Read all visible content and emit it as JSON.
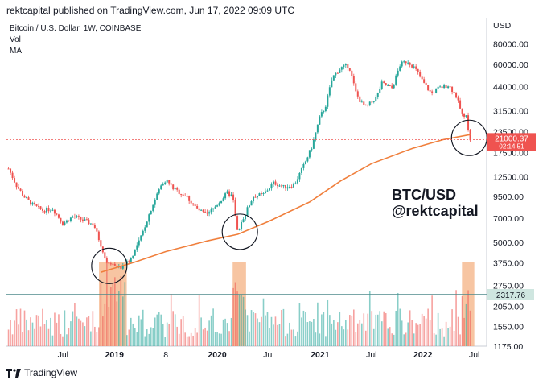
{
  "header": {
    "text": "rektcapital published on TradingView.com, Jun 17, 2022 09:09 UTC"
  },
  "legend": {
    "symbol": "Bitcoin / U.S. Dollar, 1W, COINBASE",
    "vol": "Vol",
    "ma": "MA"
  },
  "watermark": {
    "line1": "BTC/USD",
    "line2": "@rektcapital"
  },
  "footer": {
    "brand": "TradingView"
  },
  "colors": {
    "up": "#26a69a",
    "down": "#ef5350",
    "ma": "#f07f3c",
    "vol_zone": "#f4b183",
    "hline": "#4f8a8b",
    "price_badge": "#ef5350",
    "vol_badge": "#cfe6e0"
  },
  "chart_data": {
    "type": "line",
    "title": "Bitcoin / U.S. Dollar, 1W, COINBASE",
    "y_axis_unit": "USD",
    "y_scale": "log",
    "ylim": [
      1175,
      115000
    ],
    "y_ticks": [
      80000,
      60000,
      44000,
      31500,
      23500,
      17500,
      12500,
      9500,
      7000,
      5000,
      3750,
      2750,
      2050,
      1550,
      1175
    ],
    "y_tick_labels": [
      "80000.00",
      "60000.00",
      "44000.00",
      "31500.00",
      "23500.00",
      "17500.00",
      "12500.00",
      "9500.00",
      "7000.00",
      "5000.00",
      "3750.00",
      "2750.00",
      "2050.00",
      "1550.00",
      "1175.00"
    ],
    "x_ticks": [
      "Jul",
      "2019",
      "8",
      "2020",
      "Jul",
      "2021",
      "Jul",
      "2022",
      "Jul"
    ],
    "x_tick_dates": [
      2018.5,
      2019.0,
      2019.5,
      2020.0,
      2020.5,
      2021.0,
      2021.5,
      2022.0,
      2022.5
    ],
    "xlim": [
      2017.95,
      2022.62
    ],
    "price_series": {
      "name": "BTC/USD",
      "x": [
        2017.97,
        2018.05,
        2018.12,
        2018.2,
        2018.3,
        2018.4,
        2018.5,
        2018.6,
        2018.7,
        2018.8,
        2018.87,
        2018.92,
        2018.97,
        2019.05,
        2019.15,
        2019.25,
        2019.35,
        2019.45,
        2019.5,
        2019.58,
        2019.7,
        2019.8,
        2019.9,
        2020.0,
        2020.1,
        2020.15,
        2020.2,
        2020.25,
        2020.35,
        2020.45,
        2020.55,
        2020.65,
        2020.75,
        2020.85,
        2020.92,
        2021.0,
        2021.05,
        2021.12,
        2021.2,
        2021.28,
        2021.35,
        2021.4,
        2021.45,
        2021.55,
        2021.6,
        2021.7,
        2021.78,
        2021.85,
        2021.92,
        2022.0,
        2022.08,
        2022.15,
        2022.25,
        2022.32,
        2022.38,
        2022.42,
        2022.46
      ],
      "y": [
        14000,
        11000,
        9500,
        8500,
        7800,
        8000,
        6500,
        7200,
        6800,
        6400,
        4800,
        3700,
        3800,
        3500,
        3900,
        5200,
        7800,
        11000,
        12000,
        10500,
        9500,
        8000,
        7300,
        8500,
        10000,
        9500,
        5500,
        7000,
        9500,
        9800,
        11500,
        10800,
        11200,
        15000,
        19000,
        29000,
        33000,
        50000,
        57000,
        59000,
        40000,
        35000,
        33000,
        38000,
        46000,
        43000,
        60000,
        63000,
        57000,
        47000,
        40000,
        43000,
        45000,
        39000,
        30000,
        29000,
        21000
      ]
    },
    "ma_series": {
      "name": "MA",
      "x": [
        2018.87,
        2019.2,
        2019.5,
        2019.9,
        2020.2,
        2020.5,
        2020.9,
        2021.2,
        2021.5,
        2021.9,
        2022.2,
        2022.46
      ],
      "y": [
        3300,
        3800,
        4400,
        5100,
        5600,
        6700,
        8800,
        11800,
        15000,
        18600,
        21000,
        22500
      ]
    },
    "volume": {
      "approx_bar_count": 230,
      "highlight_zones": [
        [
          2018.85,
          2019.12
        ],
        [
          2020.15,
          2020.28
        ],
        [
          2022.38,
          2022.5
        ]
      ]
    },
    "annotations": [
      {
        "type": "circle",
        "x": 2018.95,
        "y": 3600,
        "label": ""
      },
      {
        "type": "circle",
        "x": 2020.22,
        "y": 5800,
        "label": ""
      },
      {
        "type": "circle",
        "x": 2022.45,
        "y": 21500,
        "label": ""
      }
    ],
    "price_label": "21000.37",
    "price_label_sub": "02:14:51",
    "volume_label": "2317.76"
  }
}
